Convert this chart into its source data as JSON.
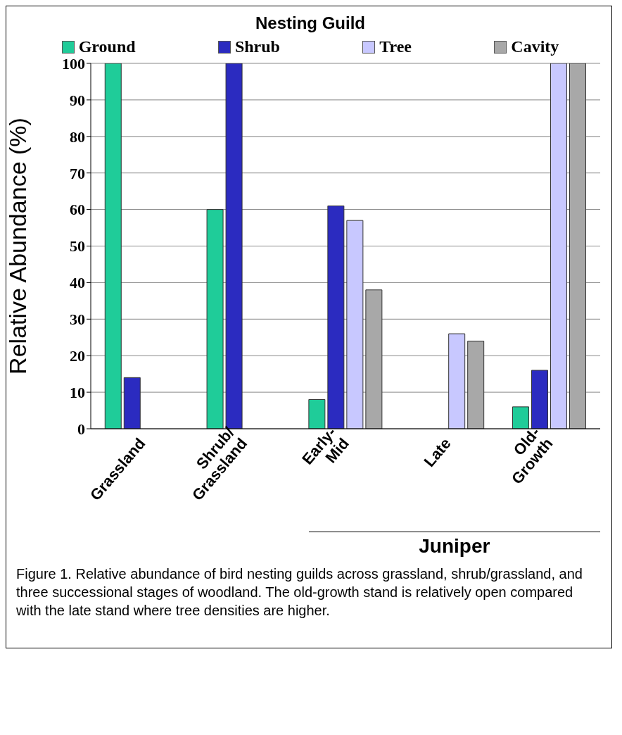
{
  "chart_data": {
    "type": "bar",
    "legend_title": "Nesting Guild",
    "ylabel": "Relative Abundance (%)",
    "categories": [
      "Grassland",
      "Shrub/Grassland",
      "Early-Mid",
      "Late",
      "Old-Growth"
    ],
    "series": [
      {
        "name": "Ground",
        "color": "#1fcc99",
        "values": [
          100,
          60,
          8,
          0,
          6
        ]
      },
      {
        "name": "Shrub",
        "color": "#2b2bc0",
        "values": [
          14,
          100,
          61,
          0,
          16
        ]
      },
      {
        "name": "Tree",
        "color": "#c8c8ff",
        "values": [
          0,
          0,
          57,
          26,
          100
        ]
      },
      {
        "name": "Cavity",
        "color": "#a8a8a8",
        "values": [
          0,
          0,
          38,
          24,
          100
        ]
      }
    ],
    "ylim": [
      0,
      100
    ],
    "yticks": [
      0,
      10,
      20,
      30,
      40,
      50,
      60,
      70,
      80,
      90,
      100
    ],
    "grid": "y",
    "legend": "top",
    "annotations": [
      "Juniper",
      "Figure 1.  Relative abundance of bird nesting guilds across grassland, shrub/grassland, and three successional stages of woodland.  The old-growth stand is relatively open compared with the late stand where tree densities are higher."
    ]
  }
}
